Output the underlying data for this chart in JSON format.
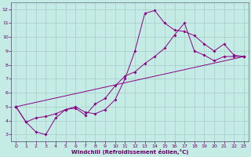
{
  "bg_color": "#c5ece4",
  "grid_color": "#a8ccc8",
  "line_color": "#880088",
  "spine_color": "#666688",
  "tick_color": "#660066",
  "xlabel": "Windchill (Refroidissement éolien,°C)",
  "xlim": [
    -0.5,
    23.5
  ],
  "ylim": [
    2.5,
    12.5
  ],
  "xticks": [
    0,
    1,
    2,
    3,
    4,
    5,
    6,
    7,
    8,
    9,
    10,
    11,
    12,
    13,
    14,
    15,
    16,
    17,
    18,
    19,
    20,
    21,
    22,
    23
  ],
  "yticks": [
    3,
    4,
    5,
    6,
    7,
    8,
    9,
    10,
    11,
    12
  ],
  "line1_x": [
    0,
    1,
    2,
    3,
    4,
    5,
    6,
    7,
    8,
    9,
    10,
    11,
    12,
    13,
    14,
    15,
    16,
    17,
    18,
    19,
    20,
    21,
    22,
    23
  ],
  "line1_y": [
    5.0,
    3.9,
    3.2,
    3.0,
    4.2,
    4.8,
    5.0,
    4.6,
    4.5,
    4.8,
    5.5,
    7.0,
    9.0,
    11.7,
    11.9,
    11.0,
    10.5,
    10.4,
    10.1,
    9.5,
    9.0,
    9.5,
    8.7,
    8.6
  ],
  "line2_x": [
    0,
    1,
    2,
    3,
    4,
    5,
    6,
    7,
    8,
    9,
    10,
    11,
    12,
    13,
    14,
    15,
    16,
    17,
    18,
    19,
    20,
    21,
    22,
    23
  ],
  "line2_y": [
    5.0,
    3.9,
    4.2,
    4.3,
    4.5,
    4.8,
    4.9,
    4.4,
    5.2,
    5.6,
    6.5,
    7.2,
    7.5,
    8.1,
    8.6,
    9.2,
    10.15,
    11.0,
    9.0,
    8.7,
    8.3,
    8.6,
    8.6,
    8.6
  ],
  "line3_x": [
    0,
    23
  ],
  "line3_y": [
    5.0,
    8.6
  ]
}
